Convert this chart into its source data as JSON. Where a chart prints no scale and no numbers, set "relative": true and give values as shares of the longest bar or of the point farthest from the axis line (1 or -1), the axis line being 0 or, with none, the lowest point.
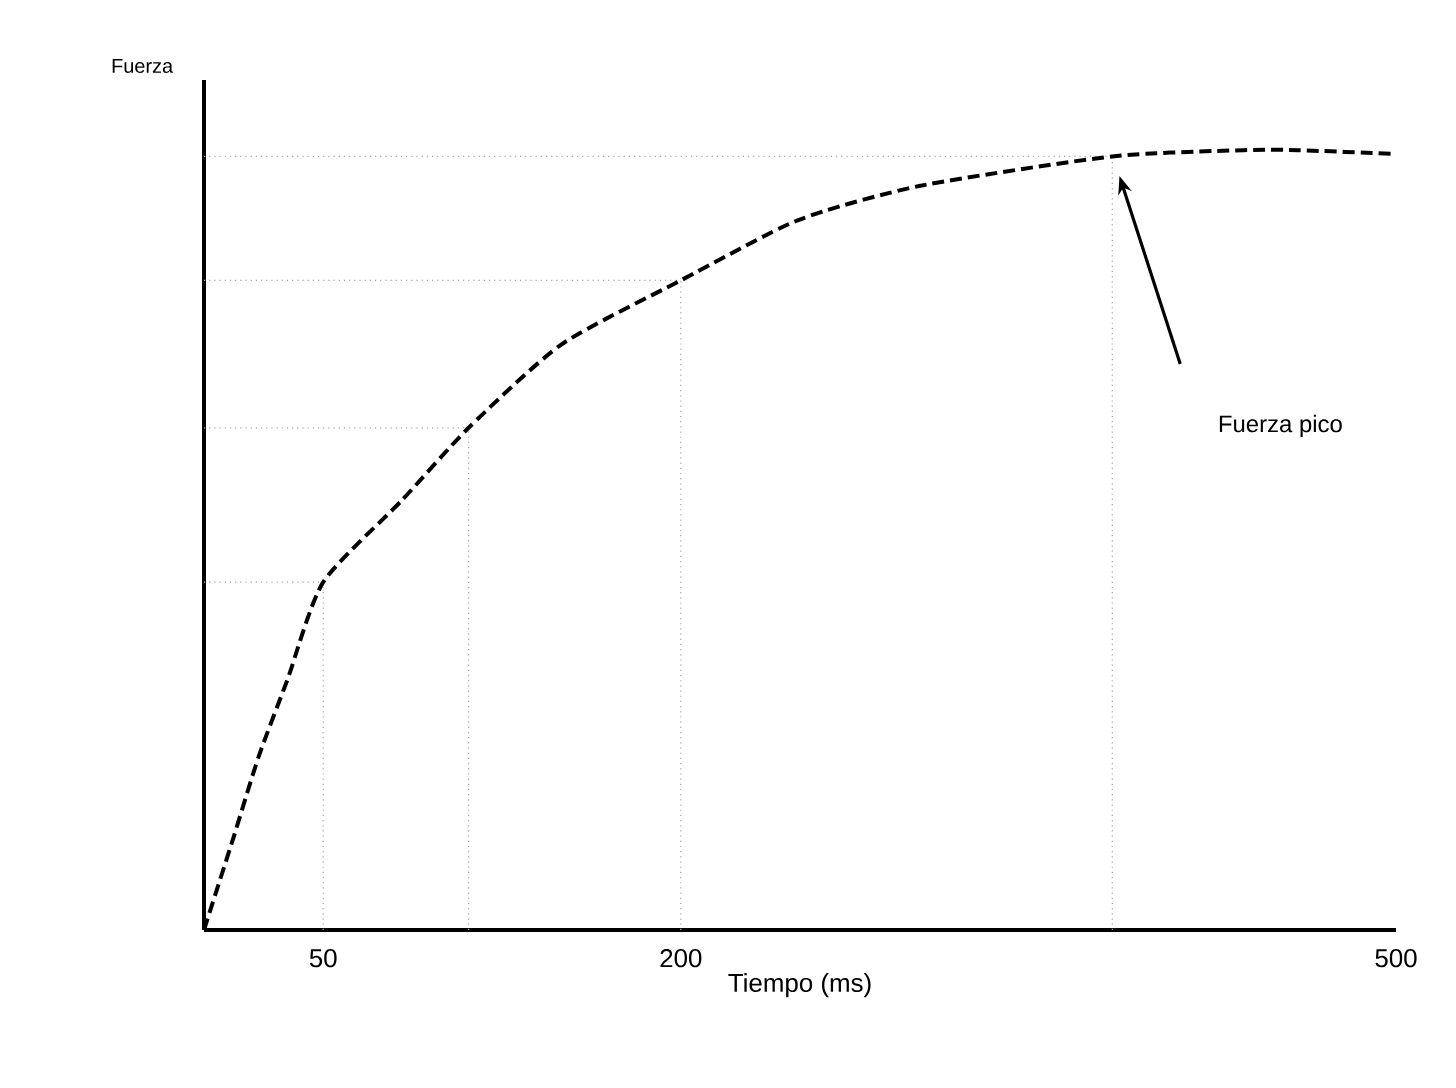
{
  "chart_data": {
    "type": "line",
    "xlabel": "Tiempo (ms)",
    "ylabel": "Fuerza",
    "relative": true,
    "xlim": [
      0,
      500
    ],
    "xticks": [
      50,
      200,
      500
    ],
    "grid": false,
    "marker": "none",
    "line_style": "dashed",
    "series": [
      {
        "color": "#000000",
        "x": [
          0,
          12,
          23,
          35,
          50,
          83,
          111,
          150,
          200,
          249,
          300,
          381,
          436,
          459,
          500
        ],
        "values": [
          0,
          0.115,
          0.223,
          0.321,
          0.446,
          0.551,
          0.644,
          0.751,
          0.833,
          0.91,
          0.954,
          0.992,
          1,
          1,
          0.995
        ]
      }
    ],
    "ref_lines": [
      {
        "axis": "x",
        "value": 50,
        "color": "#a6a6a6",
        "line_style": "dotted"
      },
      {
        "axis": "x",
        "value": 111,
        "color": "#a6a6a6",
        "line_style": "dotted"
      },
      {
        "axis": "x",
        "value": 200,
        "color": "#a6a6a6",
        "line_style": "dotted"
      },
      {
        "axis": "x",
        "value": 381,
        "color": "#a6a6a6",
        "line_style": "dotted"
      },
      {
        "axis": "y",
        "value": 0.446,
        "color": "#a6a6a6",
        "line_style": "dotted"
      },
      {
        "axis": "y",
        "value": 0.644,
        "color": "#a6a6a6",
        "line_style": "dotted"
      },
      {
        "axis": "y",
        "value": 0.833,
        "color": "#a6a6a6",
        "line_style": "dotted"
      },
      {
        "axis": "y",
        "value": 0.992,
        "color": "#a6a6a6",
        "line_style": "dotted"
      }
    ],
    "annotations": [
      "Fuerza pico"
    ]
  }
}
